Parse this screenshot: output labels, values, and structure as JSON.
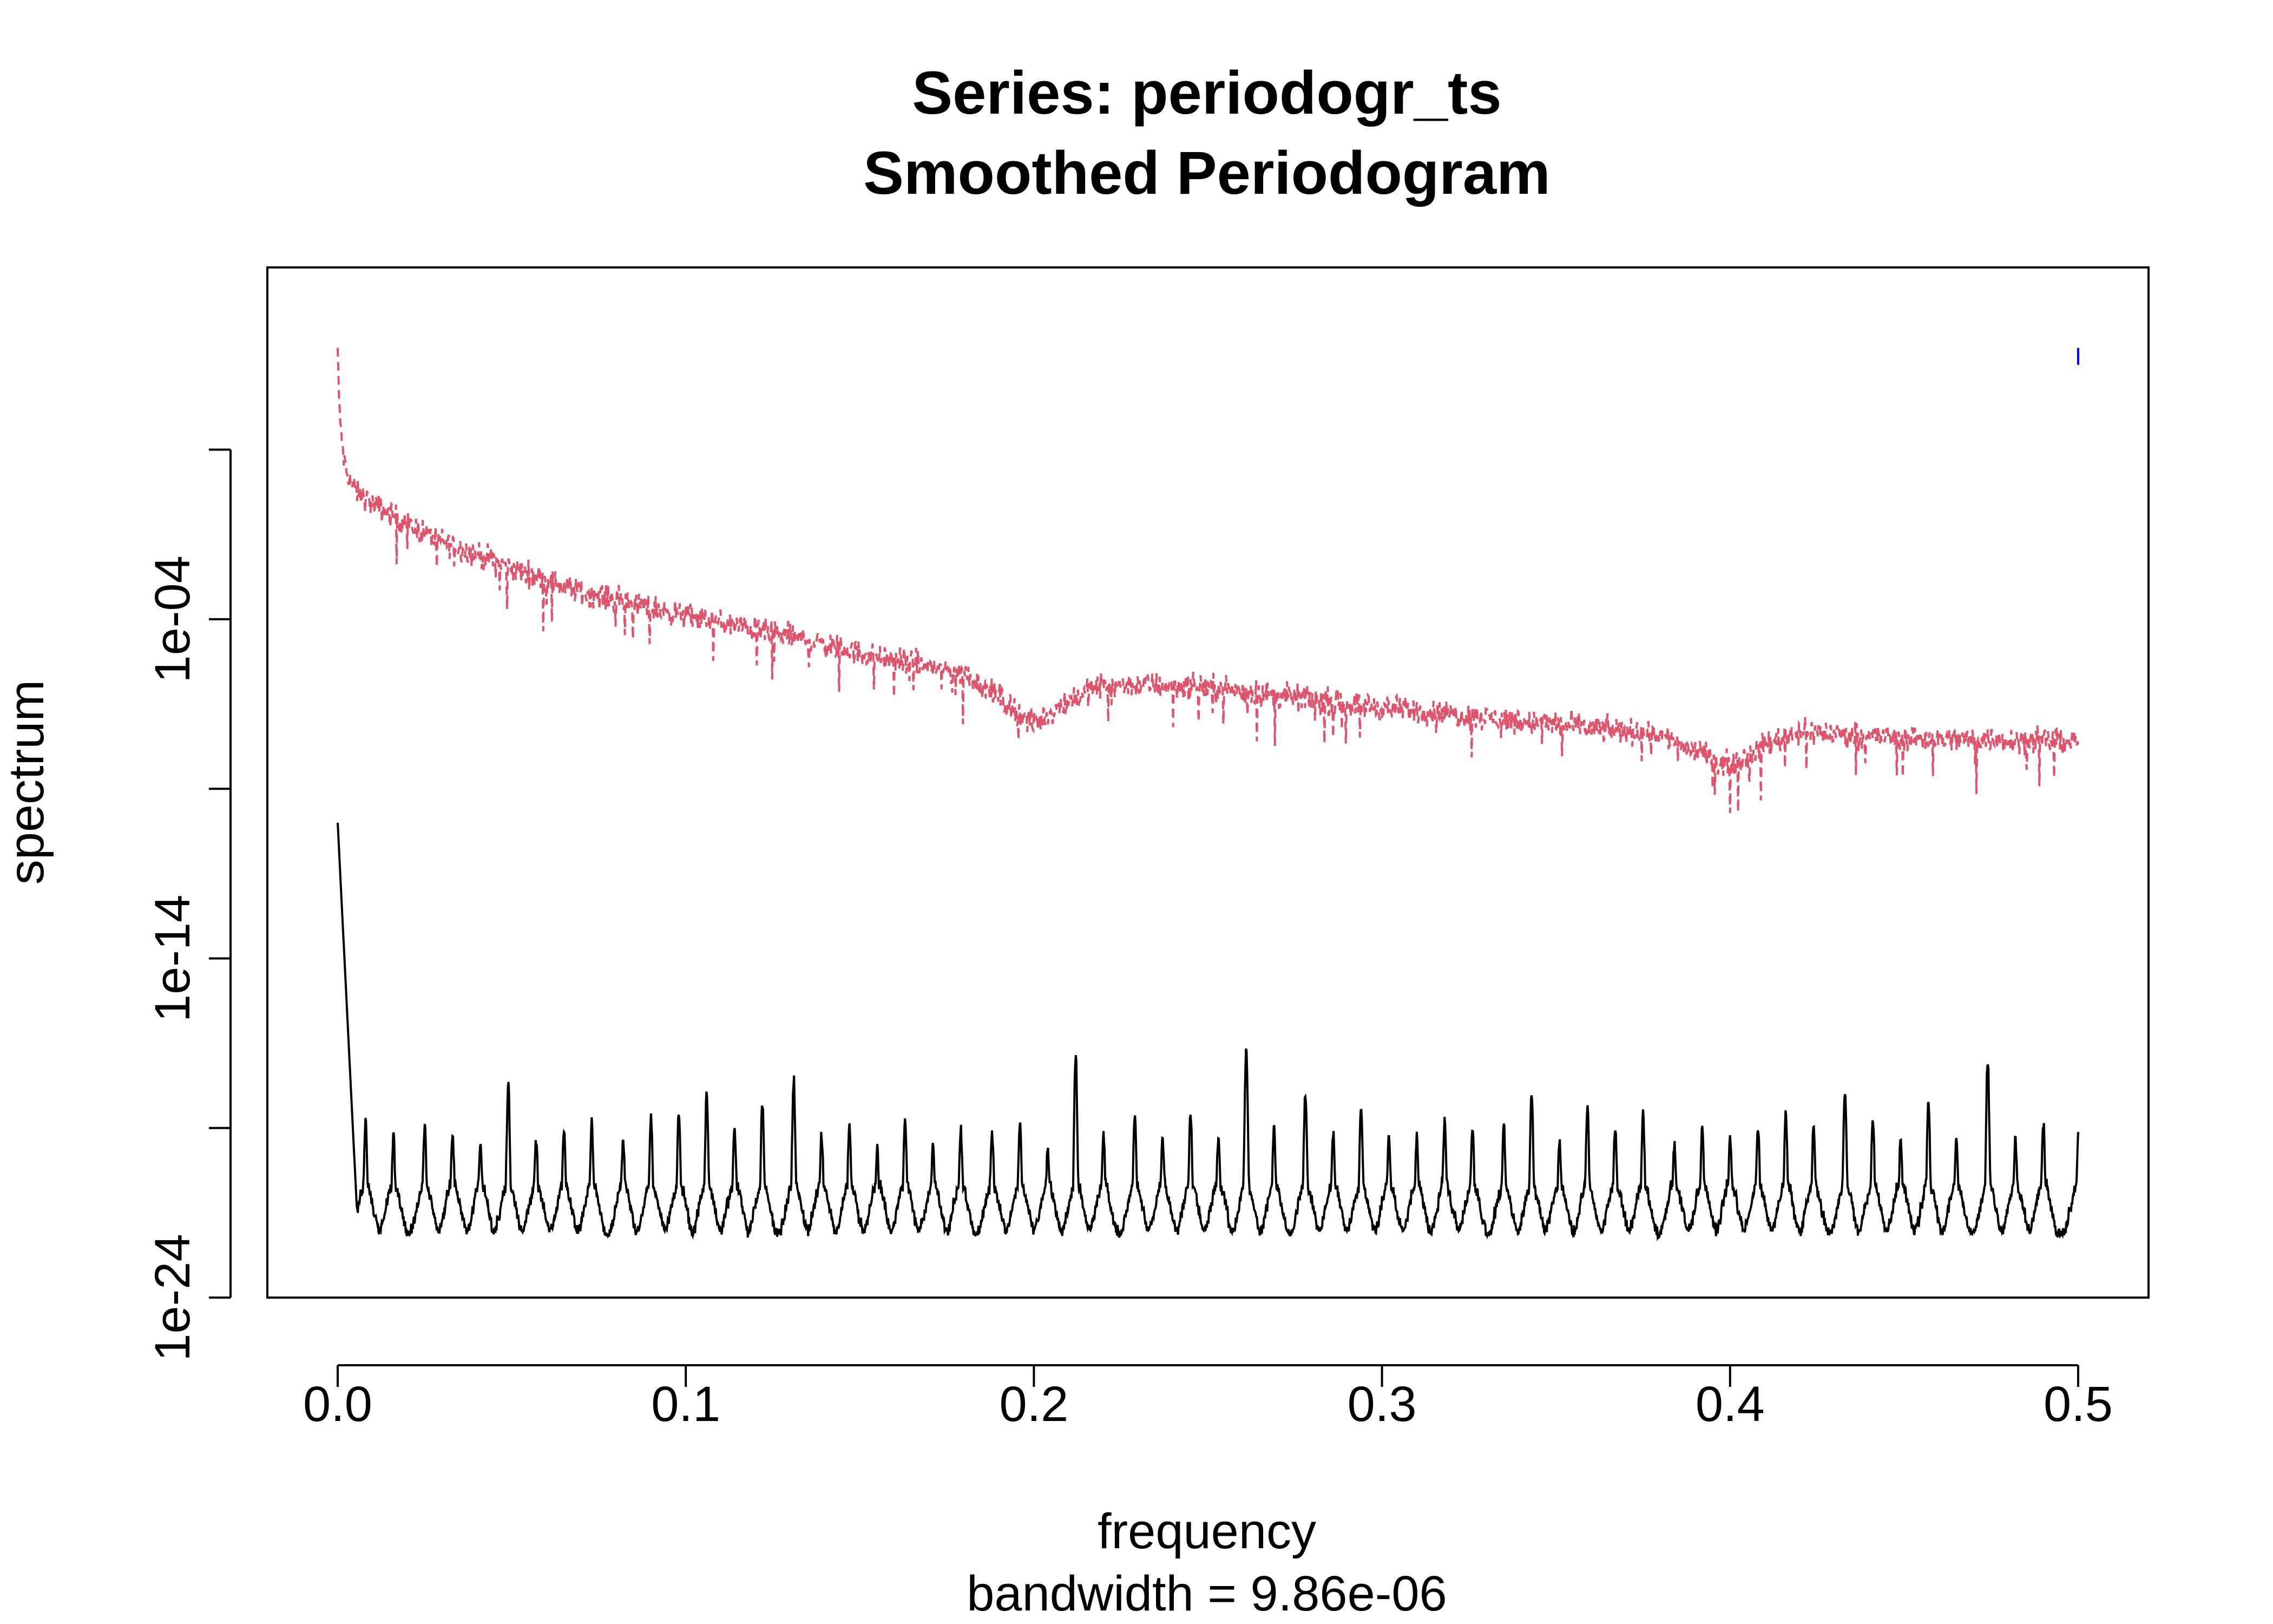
{
  "chart_data": {
    "type": "line",
    "title": "Series: periodogr_ts",
    "subtitle": "Smoothed Periodogram",
    "xlabel": "frequency",
    "sub_xlabel": "bandwidth = 9.86e-06",
    "ylabel": "spectrum",
    "y_scale": "log10",
    "xlim": [
      0.0,
      0.5
    ],
    "ylim_log10": [
      -24,
      5
    ],
    "x_ticks": [
      0.0,
      0.1,
      0.2,
      0.3,
      0.4,
      0.5
    ],
    "x_tick_labels": [
      "0.0",
      "0.1",
      "0.2",
      "0.3",
      "0.4",
      "0.5"
    ],
    "y_ticks_log10": [
      -24,
      -19,
      -14,
      -9,
      -4,
      1
    ],
    "y_tick_labels": [
      {
        "log10": -24,
        "label": "1e-24"
      },
      {
        "log10": -14,
        "label": "1e-14"
      },
      {
        "log10": -4,
        "label": "1e-04"
      }
    ],
    "series": [
      {
        "name": "spectrum series 1 (dashed)",
        "color": "#DF536B",
        "line_style": "dashed",
        "points_log10": [
          [
            0.0,
            4.0
          ],
          [
            0.0005,
            2.0
          ],
          [
            0.002,
            0.5
          ],
          [
            0.005,
            -0.2
          ],
          [
            0.01,
            -0.6
          ],
          [
            0.02,
            -1.2
          ],
          [
            0.03,
            -1.7
          ],
          [
            0.05,
            -2.5
          ],
          [
            0.07,
            -3.2
          ],
          [
            0.1,
            -3.9
          ],
          [
            0.13,
            -4.5
          ],
          [
            0.15,
            -5.0
          ],
          [
            0.17,
            -5.4
          ],
          [
            0.18,
            -5.6
          ],
          [
            0.19,
            -6.3
          ],
          [
            0.2,
            -7.1
          ],
          [
            0.21,
            -6.4
          ],
          [
            0.22,
            -5.9
          ],
          [
            0.25,
            -6.0
          ],
          [
            0.3,
            -6.6
          ],
          [
            0.35,
            -7.1
          ],
          [
            0.38,
            -7.4
          ],
          [
            0.39,
            -7.9
          ],
          [
            0.4,
            -8.3
          ],
          [
            0.41,
            -7.7
          ],
          [
            0.42,
            -7.3
          ],
          [
            0.45,
            -7.5
          ],
          [
            0.5,
            -7.6
          ]
        ]
      },
      {
        "name": "spectrum series 2 (solid)",
        "color": "#000000",
        "line_style": "solid",
        "baseline_log10": -22.4,
        "start_log10": -10.0,
        "peaks": [
          [
            0.008,
            -18.8
          ],
          [
            0.016,
            -19.2
          ],
          [
            0.025,
            -19.0
          ],
          [
            0.033,
            -19.2
          ],
          [
            0.041,
            -19.5
          ],
          [
            0.049,
            -17.7
          ],
          [
            0.057,
            -19.3
          ],
          [
            0.065,
            -19.0
          ],
          [
            0.073,
            -18.9
          ],
          [
            0.082,
            -19.3
          ],
          [
            0.09,
            -18.6
          ],
          [
            0.098,
            -18.6
          ],
          [
            0.106,
            -18.0
          ],
          [
            0.114,
            -19.0
          ],
          [
            0.122,
            -18.3
          ],
          [
            0.131,
            -17.6
          ],
          [
            0.139,
            -19.2
          ],
          [
            0.147,
            -18.9
          ],
          [
            0.155,
            -19.6
          ],
          [
            0.163,
            -18.7
          ],
          [
            0.171,
            -19.5
          ],
          [
            0.179,
            -19.0
          ],
          [
            0.188,
            -19.1
          ],
          [
            0.196,
            -18.8
          ],
          [
            0.204,
            -19.6
          ],
          [
            0.212,
            -16.8
          ],
          [
            0.22,
            -19.2
          ],
          [
            0.229,
            -18.6
          ],
          [
            0.237,
            -19.3
          ],
          [
            0.245,
            -18.6
          ],
          [
            0.253,
            -19.2
          ],
          [
            0.261,
            -16.6
          ],
          [
            0.269,
            -19.0
          ],
          [
            0.278,
            -18.0
          ],
          [
            0.286,
            -19.1
          ],
          [
            0.294,
            -18.3
          ],
          [
            0.302,
            -19.2
          ],
          [
            0.31,
            -19.4
          ],
          [
            0.318,
            -18.7
          ],
          [
            0.326,
            -19.0
          ],
          [
            0.335,
            -18.9
          ],
          [
            0.343,
            -18.0
          ],
          [
            0.351,
            -19.4
          ],
          [
            0.359,
            -18.4
          ],
          [
            0.367,
            -19.0
          ],
          [
            0.375,
            -18.6
          ],
          [
            0.384,
            -19.4
          ],
          [
            0.392,
            -18.9
          ],
          [
            0.4,
            -19.2
          ],
          [
            0.408,
            -18.9
          ],
          [
            0.416,
            -18.6
          ],
          [
            0.424,
            -18.9
          ],
          [
            0.433,
            -17.9
          ],
          [
            0.441,
            -18.7
          ],
          [
            0.449,
            -19.3
          ],
          [
            0.457,
            -18.2
          ],
          [
            0.465,
            -19.3
          ],
          [
            0.474,
            -17.0
          ],
          [
            0.482,
            -19.3
          ],
          [
            0.49,
            -18.9
          ],
          [
            0.5,
            -19.3
          ]
        ]
      },
      {
        "name": "bandwidth marker",
        "color": "#0000FF",
        "line_style": "solid",
        "points_log10": [
          [
            0.5,
            3.5
          ],
          [
            0.5,
            4.0
          ]
        ]
      }
    ]
  }
}
